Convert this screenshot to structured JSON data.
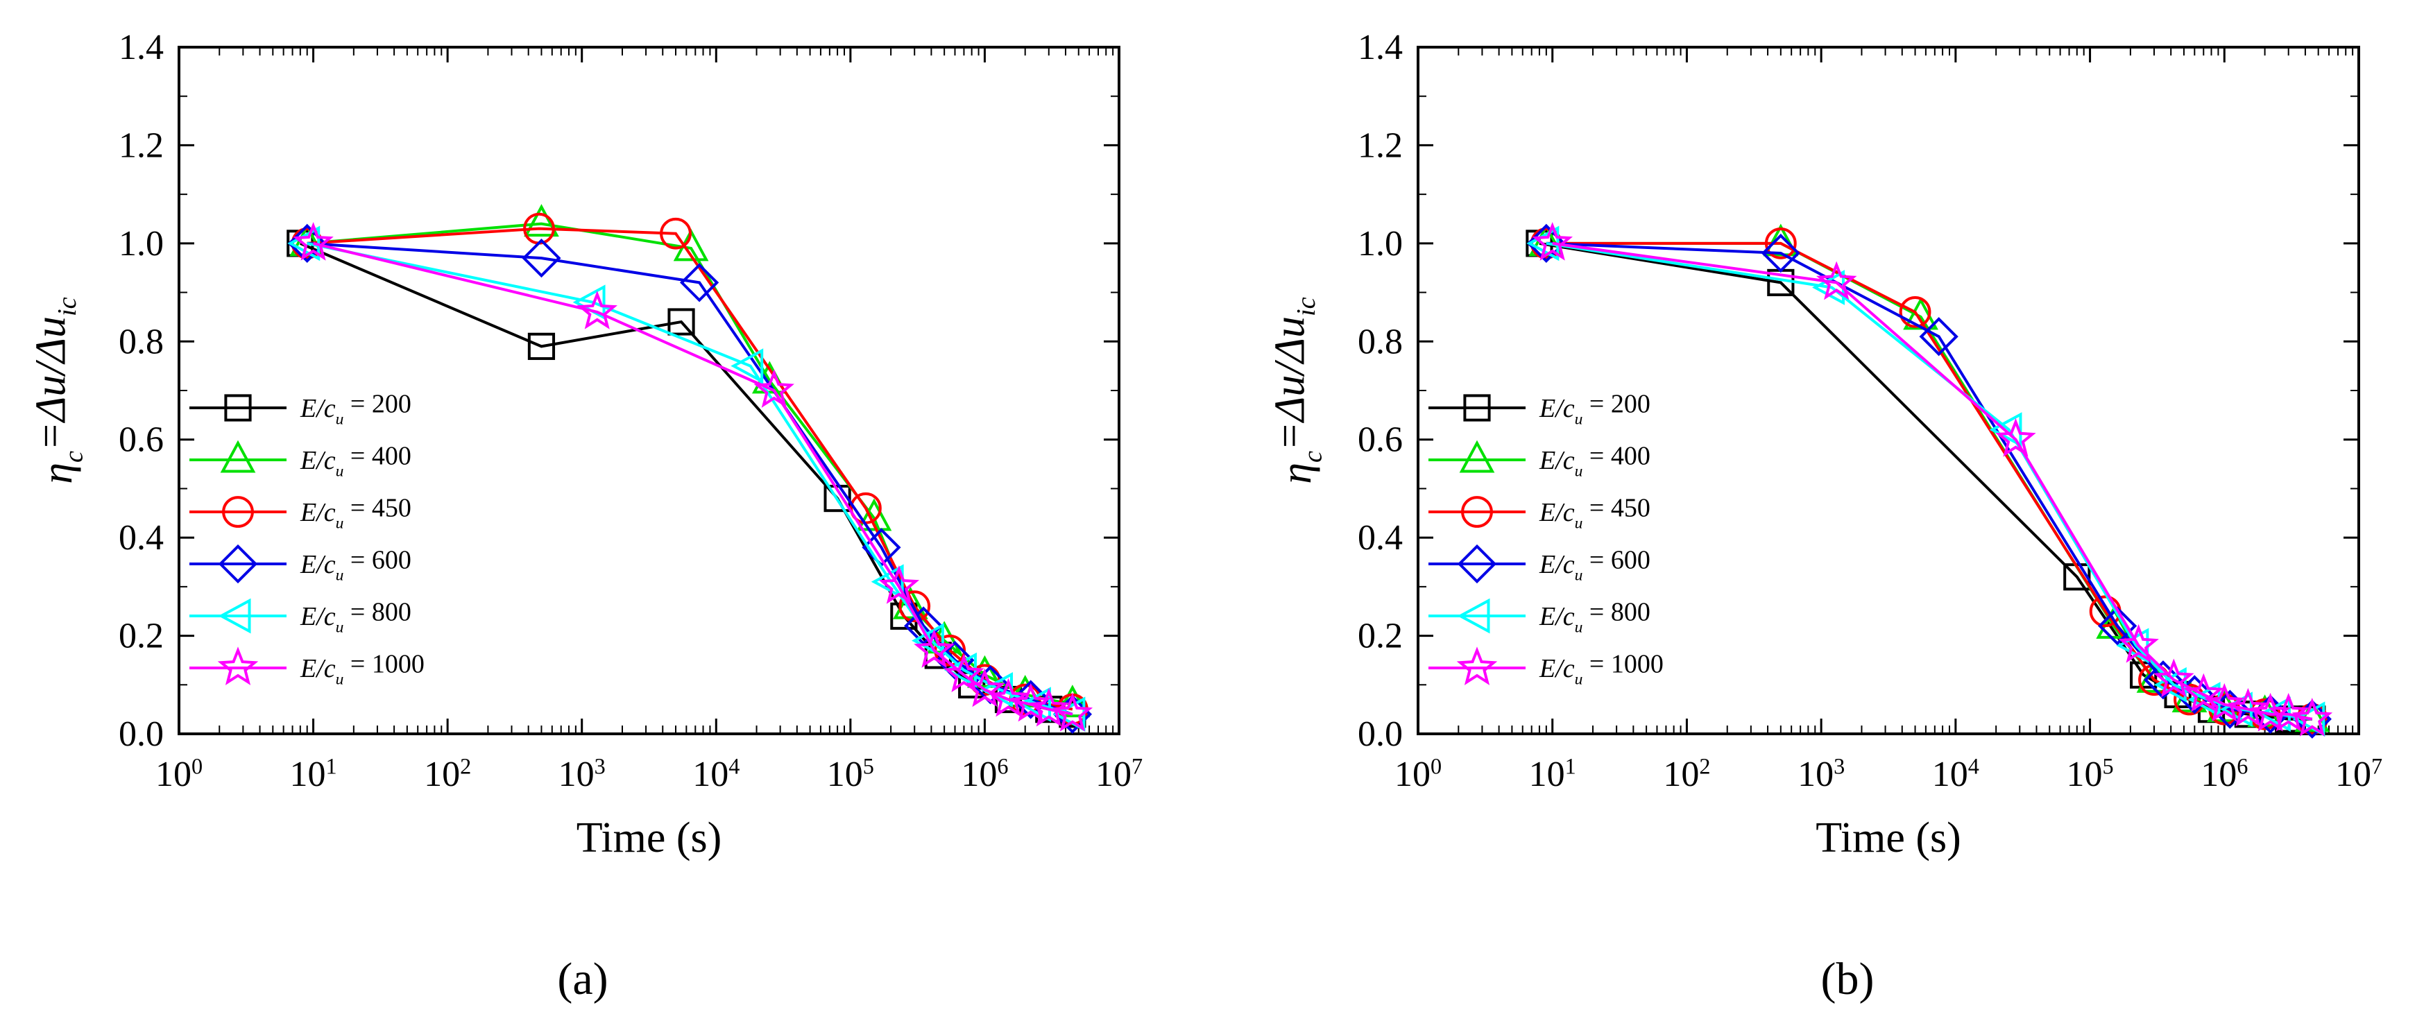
{
  "panel_labels": [
    "(a)",
    "(b)"
  ],
  "colors": {
    "200": "#000000",
    "400": "#00e000",
    "450": "#ff0000",
    "600": "#0000e6",
    "800": "#00ffff",
    "1000": "#ff00ff"
  },
  "chart_data": [
    {
      "type": "line",
      "panel": "(a)",
      "xlabel": "Time (s)",
      "ylabel": "η_c = Δu/Δu_ic",
      "xscale": "log",
      "xlim": [
        1,
        10000000
      ],
      "ylim": [
        0,
        1.4
      ],
      "x_tick_labels": [
        "10^0",
        "10^1",
        "10^2",
        "10^3",
        "10^4",
        "10^5",
        "10^6",
        "10^7"
      ],
      "y_tick_labels": [
        "0.0",
        "0.2",
        "0.4",
        "0.6",
        "0.8",
        "1.0",
        "1.2",
        "1.4"
      ],
      "legend_prefix": "E/c_u",
      "legend_position": "center-left",
      "series": [
        {
          "name": "200",
          "marker": "square",
          "x": [
            8,
            500,
            5500,
            80000,
            250000,
            450000,
            800000,
            1500000,
            3000000,
            4500000
          ],
          "y": [
            1.0,
            0.79,
            0.84,
            0.48,
            0.24,
            0.16,
            0.1,
            0.07,
            0.05,
            0.04
          ]
        },
        {
          "name": "400",
          "marker": "triangle-up",
          "x": [
            9,
            500,
            6500,
            25000,
            150000,
            280000,
            500000,
            1000000,
            2000000,
            4500000
          ],
          "y": [
            1.0,
            1.04,
            0.99,
            0.72,
            0.44,
            0.26,
            0.19,
            0.12,
            0.08,
            0.06
          ]
        },
        {
          "name": "450",
          "marker": "circle",
          "x": [
            9,
            480,
            5000,
            130000,
            300000,
            550000,
            1000000,
            2000000,
            4500000
          ],
          "y": [
            1.0,
            1.03,
            1.02,
            0.46,
            0.26,
            0.17,
            0.11,
            0.07,
            0.05
          ]
        },
        {
          "name": "600",
          "marker": "diamond",
          "x": [
            9,
            500,
            7500,
            170000,
            350000,
            600000,
            1100000,
            2200000,
            4500000
          ],
          "y": [
            1.0,
            0.97,
            0.92,
            0.38,
            0.22,
            0.15,
            0.1,
            0.07,
            0.04
          ]
        },
        {
          "name": "800",
          "marker": "triangle-left",
          "x": [
            9,
            1200,
            18000,
            200000,
            400000,
            700000,
            1300000,
            2500000,
            4500000
          ],
          "y": [
            1.0,
            0.88,
            0.75,
            0.31,
            0.19,
            0.13,
            0.09,
            0.06,
            0.04
          ]
        },
        {
          "name": "1000",
          "marker": "star",
          "x": [
            10,
            1300,
            27000,
            230000,
            420000,
            700000,
            1000000,
            1500000,
            2200000,
            3000000,
            4500000
          ],
          "y": [
            1.0,
            0.86,
            0.7,
            0.3,
            0.17,
            0.12,
            0.09,
            0.07,
            0.06,
            0.05,
            0.04
          ]
        }
      ]
    },
    {
      "type": "line",
      "panel": "(b)",
      "xlabel": "Time (s)",
      "ylabel": "η_c = Δu/Δu_ic",
      "xscale": "log",
      "xlim": [
        1,
        10000000
      ],
      "ylim": [
        0,
        1.4
      ],
      "x_tick_labels": [
        "10^0",
        "10^1",
        "10^2",
        "10^3",
        "10^4",
        "10^5",
        "10^6",
        "10^7"
      ],
      "y_tick_labels": [
        "0.0",
        "0.2",
        "0.4",
        "0.6",
        "0.8",
        "1.0",
        "1.2",
        "1.4"
      ],
      "legend_prefix": "E/c_u",
      "legend_position": "center-left",
      "series": [
        {
          "name": "200",
          "marker": "square",
          "x": [
            8,
            500,
            80000,
            250000,
            450000,
            800000,
            1500000,
            3000000,
            4500000
          ],
          "y": [
            1.0,
            0.92,
            0.32,
            0.12,
            0.08,
            0.05,
            0.04,
            0.03,
            0.03
          ]
        },
        {
          "name": "400",
          "marker": "triangle-up",
          "x": [
            9,
            500,
            5500,
            150000,
            300000,
            550000,
            1000000,
            2000000,
            4500000
          ],
          "y": [
            1.0,
            1.0,
            0.85,
            0.22,
            0.11,
            0.07,
            0.05,
            0.04,
            0.03
          ]
        },
        {
          "name": "450",
          "marker": "circle",
          "x": [
            9,
            500,
            5000,
            130000,
            300000,
            550000,
            1000000,
            2000000,
            4500000
          ],
          "y": [
            1.0,
            1.0,
            0.86,
            0.25,
            0.11,
            0.07,
            0.05,
            0.04,
            0.03
          ]
        },
        {
          "name": "600",
          "marker": "diamond",
          "x": [
            9,
            500,
            7500,
            160000,
            350000,
            600000,
            1100000,
            2200000,
            4500000
          ],
          "y": [
            1.0,
            0.98,
            0.81,
            0.22,
            0.11,
            0.08,
            0.05,
            0.04,
            0.03
          ]
        },
        {
          "name": "800",
          "marker": "triangle-left",
          "x": [
            9,
            1200,
            25000,
            220000,
            420000,
            750000,
            1300000,
            2500000,
            4500000
          ],
          "y": [
            1.0,
            0.91,
            0.62,
            0.18,
            0.1,
            0.07,
            0.05,
            0.04,
            0.03
          ]
        },
        {
          "name": "1000",
          "marker": "star",
          "x": [
            10,
            1300,
            28000,
            230000,
            420000,
            700000,
            1000000,
            1500000,
            2200000,
            3000000,
            4500000
          ],
          "y": [
            1.0,
            0.92,
            0.6,
            0.18,
            0.11,
            0.08,
            0.06,
            0.05,
            0.04,
            0.04,
            0.03
          ]
        }
      ]
    }
  ]
}
